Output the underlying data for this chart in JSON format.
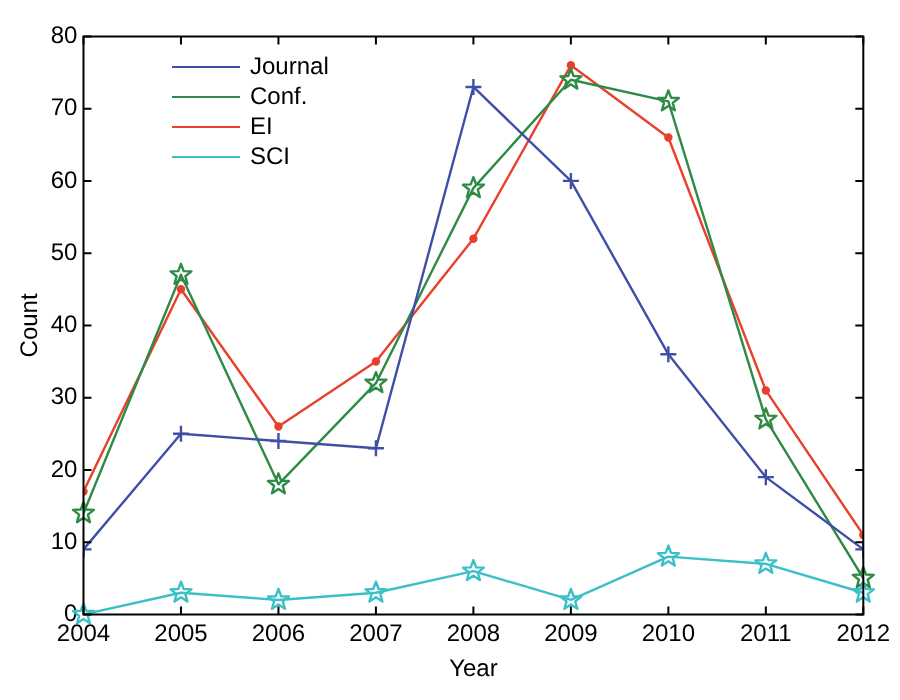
{
  "chart_data": {
    "type": "line",
    "xlabel": "Year",
    "ylabel": "Count",
    "x": [
      2004,
      2005,
      2006,
      2007,
      2008,
      2009,
      2010,
      2011,
      2012
    ],
    "series": [
      {
        "name": "Journal",
        "color": "#3f4fa8",
        "marker": "cross",
        "values": [
          9,
          25,
          24,
          23,
          73,
          60,
          36,
          19,
          9
        ]
      },
      {
        "name": "Conf.",
        "color": "#2e8b45",
        "marker": "star",
        "values": [
          14,
          47,
          18,
          32,
          59,
          74,
          71,
          27,
          5
        ]
      },
      {
        "name": "EI",
        "color": "#e8402a",
        "marker": "circle",
        "values": [
          17,
          45,
          26,
          35,
          52,
          76,
          66,
          31,
          11
        ]
      },
      {
        "name": "SCI",
        "color": "#3cc0c8",
        "marker": "star",
        "values": [
          0,
          3,
          2,
          3,
          6,
          2,
          8,
          7,
          3
        ]
      }
    ],
    "xlim": [
      2004,
      2012
    ],
    "xticks": [
      2004,
      2005,
      2006,
      2007,
      2008,
      2009,
      2010,
      2011,
      2012
    ],
    "ylim": [
      0,
      80
    ],
    "yticks": [
      0,
      10,
      20,
      30,
      40,
      50,
      60,
      70,
      80
    ],
    "grid": false,
    "legend": "top left",
    "line_style": "solid"
  }
}
